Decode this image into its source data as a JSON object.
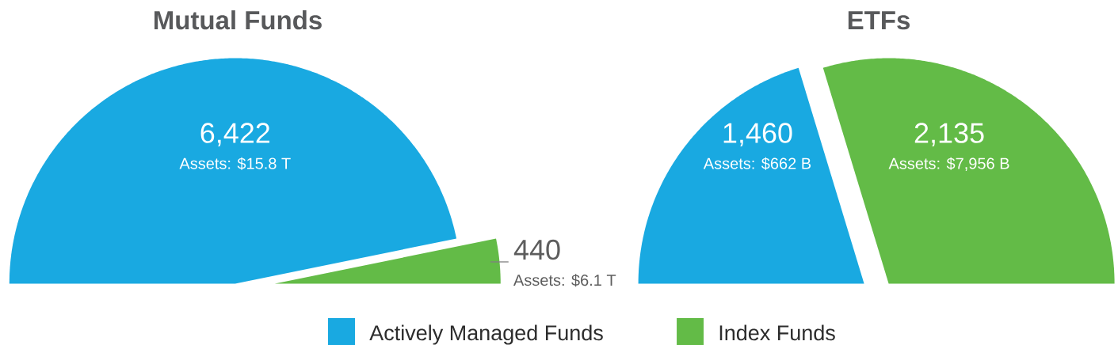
{
  "chart_data": [
    {
      "type": "pie",
      "title": "Mutual Funds",
      "categories": [
        "Actively Managed Funds",
        "Index Funds"
      ],
      "values": [
        6422,
        440
      ],
      "colors": [
        "#19a9e1",
        "#63bb47"
      ],
      "value_labels": [
        "6,422",
        "440"
      ],
      "annotations": [
        "Assets: $15.8 T",
        "Assets: $6.1 T"
      ],
      "legend": "bottom"
    },
    {
      "type": "pie",
      "title": "ETFs",
      "categories": [
        null,
        null
      ],
      "values": [
        1460,
        2135
      ],
      "colors": [
        "#19a9e1",
        "#63bb47"
      ],
      "value_labels": [
        "1,460",
        "2,135"
      ],
      "annotations": [
        "Assets: $662 B",
        "Assets: $7,956 B"
      ]
    }
  ]
}
